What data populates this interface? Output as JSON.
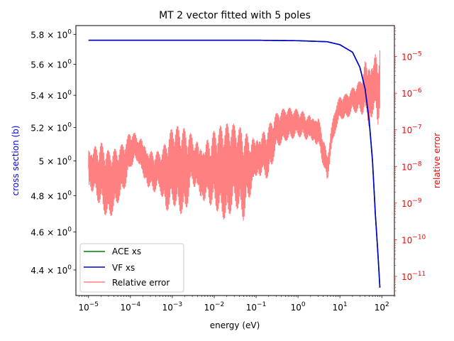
{
  "chart_data": {
    "type": "line",
    "title": "MT 2 vector fitted with 5 poles",
    "xlabel": "energy (eV)",
    "ylabel_left": "cross section (b)",
    "ylabel_right": "relative error",
    "x_scale": "log",
    "y_left_scale": "log",
    "y_right_scale": "log",
    "xlim": [
      5e-06,
      200
    ],
    "ylim_left": [
      4.27,
      5.86
    ],
    "ylim_right": [
      3e-12,
      7e-05
    ],
    "x_ticks": [
      {
        "value": 1e-05,
        "base": "10",
        "exp": "−5"
      },
      {
        "value": 0.0001,
        "base": "10",
        "exp": "−4"
      },
      {
        "value": 0.001,
        "base": "10",
        "exp": "−3"
      },
      {
        "value": 0.01,
        "base": "10",
        "exp": "−2"
      },
      {
        "value": 0.1,
        "base": "10",
        "exp": "−1"
      },
      {
        "value": 1,
        "base": "10",
        "exp": "0"
      },
      {
        "value": 10,
        "base": "10",
        "exp": "1"
      },
      {
        "value": 100,
        "base": "10",
        "exp": "2"
      }
    ],
    "y_left_ticks": [
      {
        "value": 4.4,
        "mant": "4.4 × 10",
        "exp": "0"
      },
      {
        "value": 4.6,
        "mant": "4.6 × 10",
        "exp": "0"
      },
      {
        "value": 4.8,
        "mant": "4.8 × 10",
        "exp": "0"
      },
      {
        "value": 5.0,
        "mant": "5 × 10",
        "exp": "0"
      },
      {
        "value": 5.2,
        "mant": "5.2 × 10",
        "exp": "0"
      },
      {
        "value": 5.4,
        "mant": "5.4 × 10",
        "exp": "0"
      },
      {
        "value": 5.6,
        "mant": "5.6 × 10",
        "exp": "0"
      },
      {
        "value": 5.8,
        "mant": "5.8 × 10",
        "exp": "0"
      }
    ],
    "y_right_ticks": [
      {
        "value": 1e-11,
        "base": "10",
        "exp": "−11"
      },
      {
        "value": 1e-10,
        "base": "10",
        "exp": "−10"
      },
      {
        "value": 1e-09,
        "base": "10",
        "exp": "−9"
      },
      {
        "value": 1e-08,
        "base": "10",
        "exp": "−8"
      },
      {
        "value": 1e-07,
        "base": "10",
        "exp": "−7"
      },
      {
        "value": 1e-06,
        "base": "10",
        "exp": "−6"
      },
      {
        "value": 1e-05,
        "base": "10",
        "exp": "−5"
      }
    ],
    "series": [
      {
        "name": "ACE xs",
        "color": "#008000",
        "axis": "left",
        "x": [
          1e-05,
          0.001,
          0.1,
          1,
          5,
          10,
          20,
          30,
          40,
          50,
          60,
          70,
          80,
          90
        ],
        "values": [
          5.76,
          5.76,
          5.76,
          5.757,
          5.75,
          5.73,
          5.68,
          5.58,
          5.44,
          5.24,
          5.0,
          4.7,
          4.5,
          4.31
        ]
      },
      {
        "name": "VF xs",
        "color": "#0000cc",
        "axis": "left",
        "x": [
          1e-05,
          0.001,
          0.1,
          1,
          5,
          10,
          20,
          30,
          40,
          50,
          60,
          70,
          80,
          90
        ],
        "values": [
          5.76,
          5.76,
          5.76,
          5.757,
          5.75,
          5.73,
          5.68,
          5.58,
          5.44,
          5.24,
          5.0,
          4.7,
          4.5,
          4.31
        ]
      },
      {
        "name": "Relative error",
        "color": "#ff8080",
        "axis": "right",
        "envelope_x": [
          1e-05,
          2e-05,
          3e-05,
          5e-05,
          8e-05,
          0.0001,
          0.00015,
          0.0002,
          0.0003,
          0.0005,
          0.0007,
          0.001,
          0.002,
          0.003,
          0.005,
          0.01,
          0.02,
          0.03,
          0.05,
          0.1,
          0.2,
          0.3,
          0.5,
          1,
          2,
          3,
          4,
          5,
          6,
          8,
          10,
          15,
          20,
          30,
          40,
          50,
          60,
          70,
          80,
          90
        ],
        "upper": [
          8e-08,
          7e-08,
          3e-08,
          3e-08,
          6e-08,
          1.2e-07,
          1e-07,
          1.2e-07,
          5e-08,
          3e-08,
          5e-08,
          1.2e-07,
          1.5e-07,
          1.3e-07,
          1.3e-07,
          1.5e-07,
          1.5e-07,
          1.5e-07,
          1.6e-07,
          1.5e-07,
          2e-07,
          3e-07,
          4e-07,
          4e-07,
          4e-07,
          4e-07,
          1e-07,
          2e-08,
          1e-07,
          5e-07,
          8e-07,
          1e-06,
          1.5e-06,
          3e-06,
          2e-05,
          3e-05,
          2.5e-05,
          3e-05,
          2e-05,
          5e-05
        ],
        "lower": [
          1e-09,
          5e-10,
          3e-10,
          1e-09,
          3e-09,
          8e-09,
          1e-08,
          2e-09,
          1e-09,
          2e-09,
          5e-10,
          1e-09,
          3e-10,
          2e-09,
          3e-10,
          5e-10,
          3e-10,
          1e-09,
          2e-10,
          2e-09,
          3e-09,
          3e-08,
          5e-08,
          6e-08,
          3e-08,
          2e-08,
          8e-09,
          3e-09,
          2e-08,
          1e-07,
          2e-07,
          2e-07,
          3e-07,
          2e-07,
          1e-07,
          2e-08,
          8e-08,
          1e-07,
          5e-08,
          2e-07
        ]
      }
    ],
    "legend": {
      "position": "lower-left",
      "entries": [
        "ACE xs",
        "VF xs",
        "Relative error"
      ]
    }
  }
}
